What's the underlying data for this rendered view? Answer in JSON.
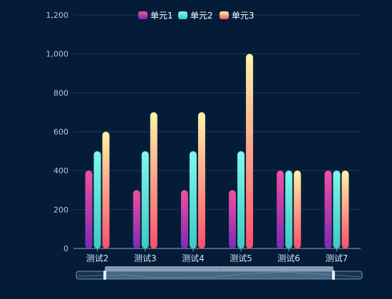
{
  "chart_data": {
    "type": "bar",
    "categories": [
      "测试2",
      "测试3",
      "测试4",
      "测试5",
      "测试6",
      "测试7"
    ],
    "series": [
      {
        "name": "单元1",
        "values": [
          400,
          300,
          300,
          300,
          400,
          400
        ]
      },
      {
        "name": "单元2",
        "values": [
          500,
          500,
          500,
          500,
          400,
          400
        ]
      },
      {
        "name": "单元3",
        "values": [
          600,
          700,
          700,
          1000,
          400,
          400
        ]
      }
    ],
    "yticks": [
      "0",
      "200",
      "400",
      "600",
      "800",
      "1,000",
      "1,200"
    ],
    "ylim": [
      0,
      1200
    ],
    "grid": true,
    "legend_position": "top-center"
  },
  "colors": {
    "background": "#041c38",
    "grid": "#1e3a59",
    "axis": "#8ea6c3",
    "series": [
      {
        "top": "#f24fa3",
        "bottom": "#7d2ab5"
      },
      {
        "top": "#7ef7ea",
        "bottom": "#3ec9c1"
      },
      {
        "top": "#fff3a6",
        "bottom": "#ff4f6a"
      }
    ],
    "slider_fill": "#6f8fb3",
    "slider_border": "#9fb3c8",
    "slider_track": "#17344f"
  },
  "dataZoom": {
    "handle_glyph": "⦙",
    "range_percent": [
      10,
      90
    ]
  }
}
